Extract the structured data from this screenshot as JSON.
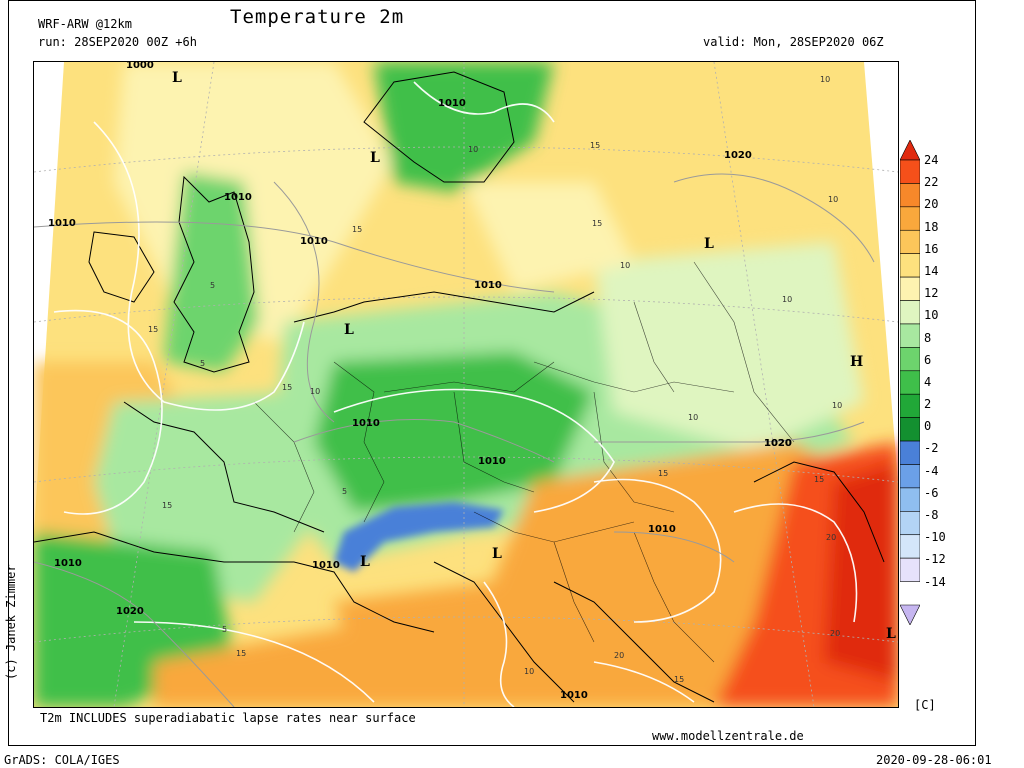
{
  "header": {
    "model": "WRF-ARW @12km",
    "run": "run: 28SEP2020 00Z +6h",
    "title": "Temperature 2m",
    "valid": "valid: Mon, 28SEP2020 06Z"
  },
  "footer": {
    "note": "T2m INCLUDES superadiabatic lapse rates near surface",
    "website": "www.modellzentrale.de",
    "grads": "GrADS: COLA/IGES",
    "timestamp": "2020-09-28-06:01",
    "copyright": "(c) Janek Zimmer"
  },
  "legend": {
    "unit": "[C]",
    "ticks": [
      "24",
      "22",
      "20",
      "18",
      "16",
      "14",
      "12",
      "10",
      "8",
      "6",
      "4",
      "2",
      "0",
      "-2",
      "-4",
      "-6",
      "-8",
      "-10",
      "-12",
      "-14"
    ],
    "colors": [
      "#e02a10",
      "#f5501a",
      "#f7882a",
      "#f9a83c",
      "#fcc65a",
      "#fde17e",
      "#fdf3b0",
      "#dff5c0",
      "#a8e8a0",
      "#6dd46d",
      "#3fbf4a",
      "#21a838",
      "#139030",
      "#4a80d8",
      "#6ba0e8",
      "#8fbef0",
      "#b3d4f5",
      "#d4e6fa",
      "#e6e2fb",
      "#c6b6f0"
    ]
  },
  "map": {
    "pressure_labels": [
      "1000",
      "1010",
      "1010",
      "1010",
      "1010",
      "1010",
      "1010",
      "1020",
      "1010",
      "1020",
      "1010",
      "1010",
      "1010",
      "1020",
      "1020",
      "1010"
    ],
    "pressure_centers": [
      "L",
      "L",
      "L",
      "L",
      "L",
      "H",
      "L",
      "L"
    ],
    "temp_labels": [
      "10",
      "15",
      "5",
      "10",
      "15",
      "10",
      "5",
      "15",
      "10",
      "15",
      "15",
      "5",
      "20",
      "20",
      "15",
      "10",
      "10",
      "15",
      "5",
      "10",
      "15",
      "20",
      "15",
      "10",
      "15",
      "10"
    ]
  }
}
